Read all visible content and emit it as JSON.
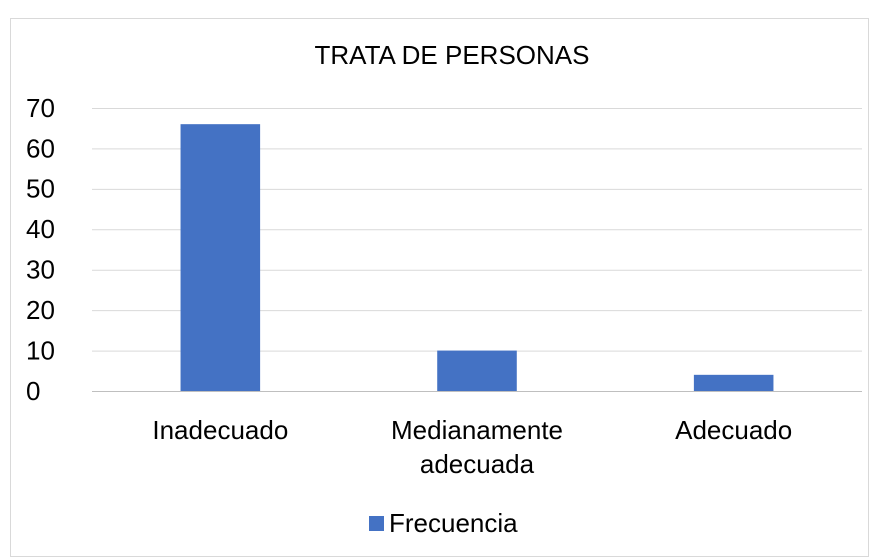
{
  "chart_data": {
    "type": "bar",
    "title": "TRATA DE PERSONAS",
    "categories": [
      "Inadecuado",
      "Medianamente adecuada",
      "Adecuado"
    ],
    "series": [
      {
        "name": "Frecuencia",
        "color": "#4472c4",
        "values": [
          66,
          10,
          4
        ]
      }
    ],
    "ylim": [
      0,
      70
    ],
    "yticks": [
      0,
      10,
      20,
      30,
      40,
      50,
      60,
      70
    ],
    "grid": true,
    "legend": "bottom"
  }
}
